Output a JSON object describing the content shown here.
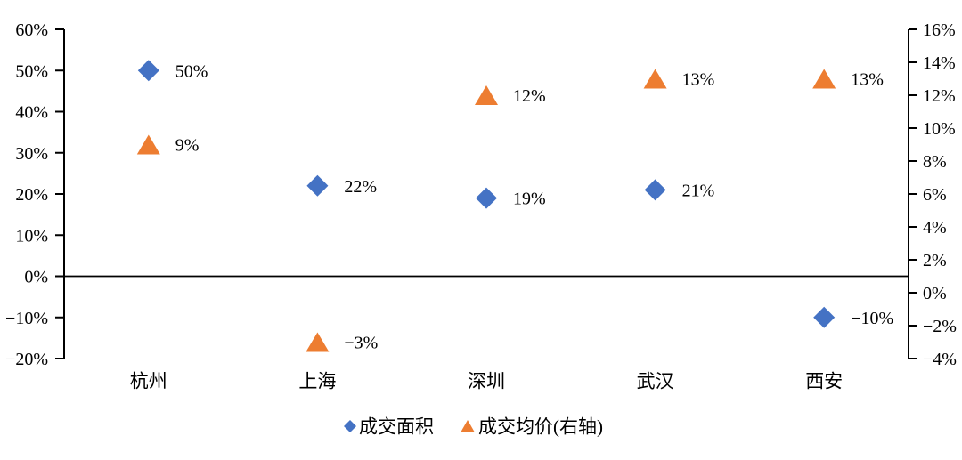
{
  "chart_data": {
    "type": "scatter",
    "title": "",
    "categories": [
      "杭州",
      "上海",
      "深圳",
      "武汉",
      "西安"
    ],
    "series": [
      {
        "name": "成交面积",
        "marker": "diamond",
        "color": "#4472C4",
        "axis": "left",
        "values": [
          50,
          22,
          19,
          21,
          -10
        ],
        "point_labels": [
          "50%",
          "22%",
          "19%",
          "21%",
          "−10%"
        ]
      },
      {
        "name": "成交均价(右轴)",
        "marker": "triangle",
        "color": "#ED7D31",
        "axis": "right",
        "values": [
          9,
          -3,
          12,
          13,
          13
        ],
        "point_labels": [
          "9%",
          "−3%",
          "12%",
          "13%",
          "13%"
        ]
      }
    ],
    "left_axis": {
      "min": -20,
      "max": 60,
      "step": 10,
      "tick_values": [
        60,
        50,
        40,
        30,
        20,
        10,
        0,
        -10,
        -20
      ],
      "tick_labels": [
        "60%",
        "50%",
        "40%",
        "30%",
        "20%",
        "10%",
        "0%",
        "−10%",
        "−20%"
      ]
    },
    "right_axis": {
      "min": -4,
      "max": 16,
      "step": 2,
      "tick_values": [
        16,
        14,
        12,
        10,
        8,
        6,
        4,
        2,
        0,
        -2,
        -4
      ],
      "tick_labels": [
        "16%",
        "14%",
        "12%",
        "10%",
        "8%",
        "6%",
        "4%",
        "2%",
        "0%",
        "−2%",
        "−4%"
      ]
    },
    "zero_line": {
      "value": 0,
      "axis": "left",
      "color": "#000000"
    },
    "grid": "off",
    "legend": {
      "position": "bottom-center",
      "items": [
        {
          "label": "成交面积",
          "marker": "diamond",
          "color": "#4472C4"
        },
        {
          "label": "成交均价(右轴)",
          "marker": "triangle",
          "color": "#ED7D31"
        }
      ]
    },
    "axis_color": "#000000",
    "text_color": "#000000"
  }
}
